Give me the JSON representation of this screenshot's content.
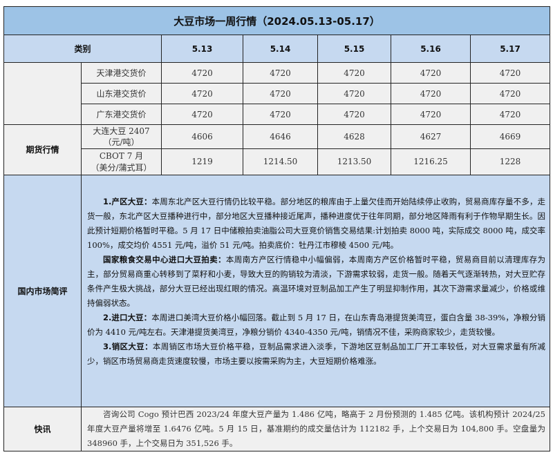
{
  "title": "大豆市场一周行情（2024.05.13-05.17）",
  "header": {
    "category_label": "类别",
    "dates": [
      "5.13",
      "5.14",
      "5.15",
      "5.16",
      "5.17"
    ]
  },
  "spot_rows": [
    {
      "label": "天津港交货价",
      "values": [
        "4720",
        "4720",
        "4720",
        "4720",
        "4720"
      ]
    },
    {
      "label": "山东港交货价",
      "values": [
        "4720",
        "4720",
        "4720",
        "4720",
        "4720"
      ]
    },
    {
      "label": "广东港交货价",
      "values": [
        "4720",
        "4720",
        "4720",
        "4720",
        "4720"
      ]
    }
  ],
  "futures": {
    "section_label": "期货行情",
    "rows": [
      {
        "label_line1": "大连大豆 2407",
        "label_line2": "（元/吨）",
        "values": [
          "4606",
          "4646",
          "4628",
          "4627",
          "4669"
        ]
      },
      {
        "label_line1": "CBOT 7 月",
        "label_line2": "（美分/蒲式耳）",
        "values": [
          "1219",
          "1214.50",
          "1213.50",
          "1216.25",
          "1228"
        ]
      }
    ]
  },
  "domestic": {
    "section_label": "国内市场简评",
    "paragraphs": [
      {
        "heading": "1.产区大豆：",
        "text": "本周东北产区大豆行情仍比较平稳。部分地区的粮库由于上量欠佳而开始陆续停止收购，贸易商库存量不多，走货一般，东北产区大豆播种进行中，部分地区大豆播种接近尾声，播种进度优于往年同期，部分地区降雨有利于作物早期生长。因此预计短期价格暂时平稳。5 月 17 日中储粮拍卖油脂公司大豆竞价销售交易结果:计划拍卖 8000 吨，实际成交 8000 吨，成交率 100%，成交均价 4551 元/吨，溢价 51 元/吨。拍卖底价：牡丹江市穆棱 4500 元/吨。"
      },
      {
        "heading": "国家粮食交易中心进口大豆拍卖：",
        "text": "本周南方产区行情稳中小幅偏弱，本周南方产区价格暂时平稳，贸易商目前以清理库存为主，部分贸易商重心转移到了菜籽和小麦，导致大豆的购销较为清淡，下游需求较弱，走货一般。随着天气逐渐转热，对大豆贮存条件产生极大挑战，部分大豆已经出现红眼的情况。高温环境对豆制品加工产生了明显抑制作用，其次下游需求量减少，价格或维持偏弱状态。"
      },
      {
        "heading": "2.进口大豆：",
        "text": "本周进口美湾大豆价格小幅回落。截止到 5 月 17 日，在山东青岛港提货美湾豆，蛋白含量 38-39%，净粮分销价为 4410 元/吨左右。天津港提货美湾豆，净粮分销价 4340-4350 元/吨，销情况不佳，采购商家较少，走货较慢。"
      },
      {
        "heading": "3.销区大豆：",
        "text": "本周销区市场大豆价格平稳，豆制品需求进入淡季，下游地区豆制品加工厂开工率较低，对大豆需求量有所减少，销区市场贸易商走货速度较慢，市场主要以按需采购为主，大豆短期价格难涨。"
      }
    ]
  },
  "news": {
    "section_label": "快讯",
    "text": "咨询公司 Cogo 预计巴西 2023/24 年度大豆产量为 1.486 亿吨，略高于 2 月份预测的 1.485 亿吨。该机构预计 2024/25 年度大豆产量将增至 1.6476 亿吨。5 月 15 日，基准期约的成交量估计为 112182 手，上个交易日为 104,800 手。空盘量为 348960 手，上个交易日为 351,526 手。"
  },
  "colors": {
    "title_bg": "#9dc3e6",
    "header_bg": "#c6d9f0",
    "row_bg": "#f0f0f0"
  }
}
